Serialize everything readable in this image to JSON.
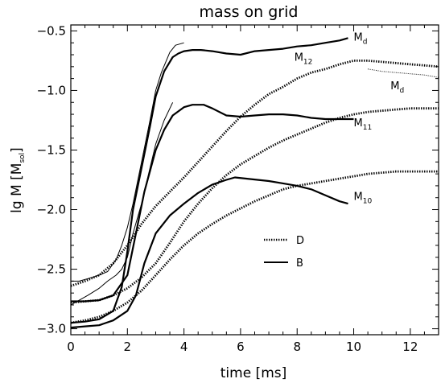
{
  "chart_data": {
    "type": "line",
    "title": "mass on grid",
    "xlabel": "time [ms]",
    "ylabel": {
      "main": "lg M [M",
      "sub": "sol",
      "close": "]"
    },
    "xlim": [
      0,
      13
    ],
    "ylim": [
      -3.05,
      -0.45
    ],
    "xticks": [
      0,
      2,
      4,
      6,
      8,
      10,
      12
    ],
    "yticks": [
      -3.0,
      -2.5,
      -2.0,
      -1.5,
      -1.0,
      -0.5
    ],
    "xtick_labels": [
      "0",
      "2",
      "4",
      "6",
      "8",
      "10",
      "12"
    ],
    "ytick_labels": [
      "−3.0",
      "−2.5",
      "−2.0",
      "−1.5",
      "−1.0",
      "−0.5"
    ],
    "grid": false,
    "legend_position": "center-right",
    "legend": [
      {
        "label": "D",
        "style": "dotted"
      },
      {
        "label": "B",
        "style": "solid"
      }
    ],
    "annotations": [
      {
        "main": "M",
        "sub": "d",
        "x": 10.0,
        "y": -0.58
      },
      {
        "main": "M",
        "sub": "12",
        "x": 7.9,
        "y": -0.75
      },
      {
        "main": "M",
        "sub": "d",
        "x": 11.3,
        "y": -0.99
      },
      {
        "main": "M",
        "sub": "11",
        "x": 10.0,
        "y": -1.3
      },
      {
        "main": "M",
        "sub": "10",
        "x": 10.0,
        "y": -1.92
      }
    ],
    "series": [
      {
        "model": "B",
        "style": "solid",
        "weight": "thick",
        "x": [
          0,
          0.5,
          1.0,
          1.5,
          1.8,
          2.0,
          2.2,
          2.5,
          2.8,
          3.0,
          3.3,
          3.6,
          3.8,
          4.0,
          4.3,
          4.6,
          5.0,
          5.5,
          6.0,
          6.5,
          7.0,
          7.5,
          8.0,
          8.5,
          9.0,
          9.5,
          9.8
        ],
        "y": [
          -2.95,
          -2.94,
          -2.92,
          -2.85,
          -2.65,
          -2.35,
          -2.0,
          -1.65,
          -1.3,
          -1.05,
          -0.84,
          -0.72,
          -0.69,
          -0.67,
          -0.66,
          -0.66,
          -0.67,
          -0.69,
          -0.7,
          -0.67,
          -0.66,
          -0.65,
          -0.63,
          -0.62,
          -0.6,
          -0.58,
          -0.56
        ]
      },
      {
        "model": "B",
        "style": "solid",
        "weight": "thick",
        "x": [
          0,
          0.5,
          1.0,
          1.5,
          2.0,
          2.3,
          2.6,
          3.0,
          3.3,
          3.6,
          4.0,
          4.3,
          4.7,
          5.0,
          5.5,
          6.0,
          6.5,
          7.0,
          7.5,
          8.0,
          8.5,
          9.0,
          9.5,
          10.0
        ],
        "y": [
          -2.77,
          -2.77,
          -2.76,
          -2.72,
          -2.55,
          -2.2,
          -1.85,
          -1.5,
          -1.33,
          -1.21,
          -1.14,
          -1.12,
          -1.12,
          -1.15,
          -1.21,
          -1.22,
          -1.21,
          -1.2,
          -1.2,
          -1.21,
          -1.23,
          -1.24,
          -1.24,
          -1.24
        ]
      },
      {
        "model": "B",
        "style": "solid",
        "weight": "thick",
        "x": [
          0,
          0.5,
          1.0,
          1.5,
          2.0,
          2.3,
          2.6,
          3.0,
          3.5,
          4.0,
          4.5,
          5.0,
          5.5,
          5.8,
          6.2,
          6.6,
          7.0,
          7.5,
          8.0,
          8.5,
          9.0,
          9.5,
          9.8
        ],
        "y": [
          -2.99,
          -2.98,
          -2.97,
          -2.93,
          -2.85,
          -2.72,
          -2.45,
          -2.2,
          -2.05,
          -1.95,
          -1.86,
          -1.79,
          -1.75,
          -1.73,
          -1.74,
          -1.75,
          -1.76,
          -1.78,
          -1.8,
          -1.83,
          -1.88,
          -1.93,
          -1.95
        ]
      },
      {
        "model": "B",
        "style": "solid",
        "weight": "thin",
        "x": [
          0,
          0.3,
          0.6,
          1.0,
          1.3,
          1.6,
          1.8,
          2.0,
          2.2,
          2.5,
          2.8,
          3.0,
          3.2,
          3.5,
          3.7,
          4.0
        ],
        "y": [
          -2.6,
          -2.6,
          -2.58,
          -2.55,
          -2.52,
          -2.42,
          -2.3,
          -2.15,
          -1.95,
          -1.6,
          -1.25,
          -1.0,
          -0.85,
          -0.68,
          -0.62,
          -0.6
        ]
      },
      {
        "model": "B",
        "style": "solid",
        "weight": "thin",
        "x": [
          0,
          0.3,
          0.6,
          1.0,
          1.3,
          1.6,
          1.8,
          2.0,
          2.2,
          2.5,
          2.8,
          3.0,
          3.3,
          3.6
        ],
        "y": [
          -2.8,
          -2.76,
          -2.72,
          -2.66,
          -2.6,
          -2.55,
          -2.5,
          -2.4,
          -2.2,
          -1.95,
          -1.65,
          -1.45,
          -1.25,
          -1.1
        ]
      },
      {
        "model": "D",
        "style": "dotted",
        "weight": "thick",
        "x": [
          0,
          0.5,
          1.0,
          1.5,
          2.0,
          2.5,
          3.0,
          3.5,
          4.0,
          4.5,
          5.0,
          5.5,
          6.0,
          6.5,
          7.0,
          7.5,
          8.0,
          8.5,
          9.0,
          9.5,
          10.0,
          10.5,
          11.0,
          11.5,
          12.0,
          12.5,
          13.0
        ],
        "y": [
          -2.64,
          -2.6,
          -2.55,
          -2.45,
          -2.3,
          -2.12,
          -1.97,
          -1.85,
          -1.73,
          -1.6,
          -1.47,
          -1.34,
          -1.22,
          -1.12,
          -1.03,
          -0.97,
          -0.9,
          -0.85,
          -0.82,
          -0.78,
          -0.75,
          -0.75,
          -0.76,
          -0.77,
          -0.78,
          -0.79,
          -0.8
        ]
      },
      {
        "model": "D",
        "style": "dotted",
        "weight": "thick",
        "x": [
          0,
          0.5,
          1.0,
          1.5,
          2.0,
          2.5,
          3.0,
          3.5,
          4.0,
          4.5,
          5.0,
          5.5,
          6.0,
          6.5,
          7.0,
          7.5,
          8.0,
          8.5,
          9.0,
          9.5,
          10.0,
          10.5,
          11.0,
          11.5,
          12.0,
          12.5,
          13.0
        ],
        "y": [
          -2.78,
          -2.77,
          -2.76,
          -2.72,
          -2.66,
          -2.57,
          -2.45,
          -2.28,
          -2.1,
          -1.95,
          -1.82,
          -1.71,
          -1.62,
          -1.55,
          -1.48,
          -1.42,
          -1.37,
          -1.32,
          -1.27,
          -1.23,
          -1.2,
          -1.18,
          -1.17,
          -1.16,
          -1.15,
          -1.15,
          -1.15
        ]
      },
      {
        "model": "D",
        "style": "dotted",
        "weight": "thick",
        "x": [
          0,
          0.5,
          1.0,
          1.5,
          2.0,
          2.5,
          3.0,
          3.5,
          4.0,
          4.5,
          5.0,
          5.5,
          6.0,
          6.5,
          7.0,
          7.5,
          8.0,
          8.5,
          9.0,
          9.5,
          10.0,
          10.5,
          11.0,
          11.5,
          12.0,
          12.5,
          13.0
        ],
        "y": [
          -2.95,
          -2.93,
          -2.9,
          -2.85,
          -2.78,
          -2.68,
          -2.55,
          -2.42,
          -2.3,
          -2.2,
          -2.12,
          -2.05,
          -1.99,
          -1.93,
          -1.88,
          -1.83,
          -1.8,
          -1.78,
          -1.76,
          -1.74,
          -1.72,
          -1.7,
          -1.69,
          -1.68,
          -1.68,
          -1.68,
          -1.68
        ]
      },
      {
        "model": "D",
        "style": "dotted",
        "weight": "thin",
        "x": [
          10.5,
          11.0,
          11.5,
          12.0,
          12.5,
          13.0
        ],
        "y": [
          -0.82,
          -0.84,
          -0.85,
          -0.86,
          -0.87,
          -0.89
        ]
      }
    ]
  }
}
